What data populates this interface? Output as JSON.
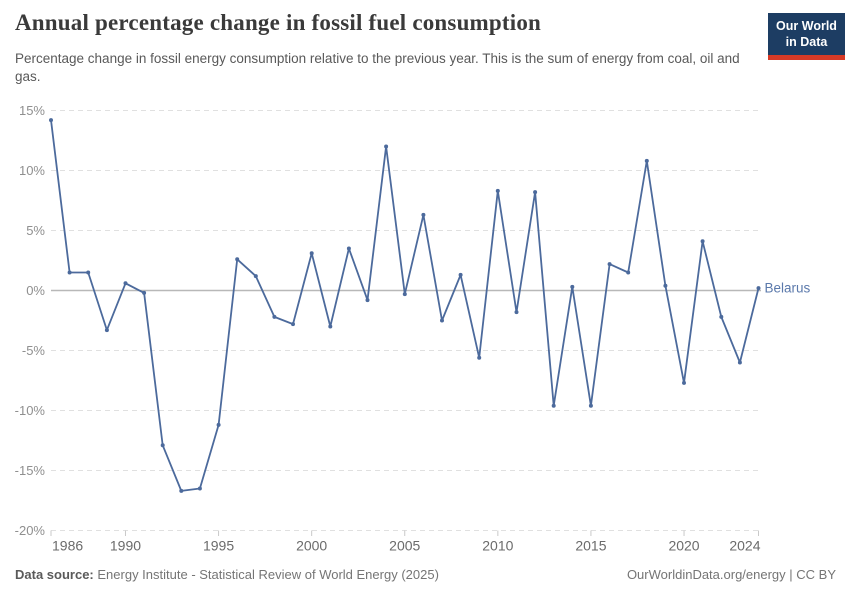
{
  "header": {
    "title": "Annual percentage change in fossil fuel consumption",
    "subtitle": "Percentage change in fossil energy consumption relative to the previous year. This is the sum of energy from coal, oil and gas.",
    "logo_line1": "Our World",
    "logo_line2": "in Data"
  },
  "footer": {
    "data_source_label": "Data source:",
    "data_source_value": "Energy Institute - Statistical Review of World Energy (2025)",
    "license": "OurWorldinData.org/energy | CC BY"
  },
  "colors": {
    "line": "#4c6a9c",
    "point": "#4c6a9c",
    "entity_label": "#5b79ab",
    "zero_line": "#b8b8b8",
    "grid": "#e0e0e0",
    "tick_mark": "#c9c9c9",
    "y_axis_text": "#8f8f8f",
    "x_axis_text": "#6b6b6b",
    "logo_bg": "#1d3d63",
    "logo_bar": "#d73a26"
  },
  "chart_data": {
    "type": "line",
    "title": "Annual percentage change in fossil fuel consumption",
    "xlabel": "",
    "ylabel": "",
    "x": [
      1986,
      1987,
      1988,
      1989,
      1990,
      1991,
      1992,
      1993,
      1994,
      1995,
      1996,
      1997,
      1998,
      1999,
      2000,
      2001,
      2002,
      2003,
      2004,
      2005,
      2006,
      2007,
      2008,
      2009,
      2010,
      2011,
      2012,
      2013,
      2014,
      2015,
      2016,
      2017,
      2018,
      2019,
      2020,
      2021,
      2022,
      2023,
      2024
    ],
    "series": [
      {
        "name": "Belarus",
        "values": [
          14.2,
          1.5,
          1.5,
          -3.3,
          0.6,
          -0.2,
          -12.9,
          -16.7,
          -16.5,
          -11.2,
          2.6,
          1.2,
          -2.2,
          -2.8,
          3.1,
          -3.0,
          3.5,
          -0.8,
          12.0,
          -0.3,
          6.3,
          -2.5,
          1.3,
          -5.6,
          8.3,
          -1.8,
          8.2,
          -9.6,
          0.3,
          -9.6,
          2.2,
          1.5,
          10.8,
          0.4,
          -7.7,
          4.1,
          -2.2,
          -6.0,
          0.2
        ]
      }
    ],
    "x_ticks": [
      1986,
      1990,
      1995,
      2000,
      2005,
      2010,
      2015,
      2020,
      2024
    ],
    "y_ticks": [
      15,
      10,
      5,
      0,
      -5,
      -10,
      -15,
      -20
    ],
    "xlim": [
      1986,
      2024
    ],
    "ylim": [
      -20,
      15
    ],
    "y_unit": "%",
    "grid": true,
    "legend_position": "end-of-line-label"
  }
}
